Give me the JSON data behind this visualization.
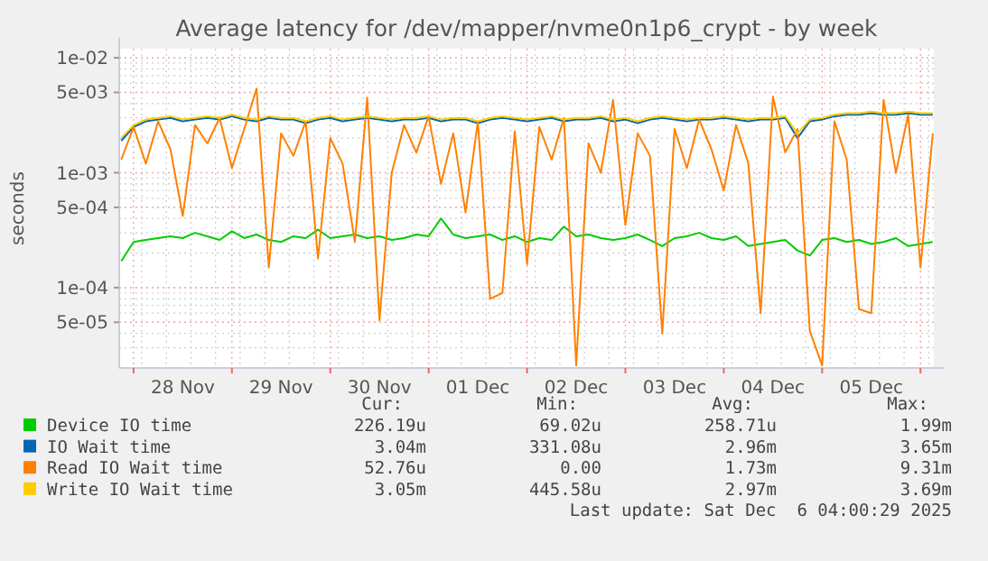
{
  "chart_data": {
    "type": "line",
    "title": "Average latency for /dev/mapper/nvme0n1p6_crypt - by week",
    "ylabel": "seconds",
    "log": "y",
    "grid": true,
    "legend": "bottom",
    "line_style": "solid",
    "ylim": [
      2e-05,
      0.012
    ],
    "yticks": [
      {
        "value": 0.01,
        "label": "1e-02"
      },
      {
        "value": 0.005,
        "label": "5e-03"
      },
      {
        "value": 0.001,
        "label": "1e-03"
      },
      {
        "value": 0.0005,
        "label": "5e-04"
      },
      {
        "value": 0.0001,
        "label": "1e-04"
      },
      {
        "value": 5e-05,
        "label": "5e-05"
      }
    ],
    "xlim": [
      "2025-11-27T20:30",
      "2025-12-06T03:15"
    ],
    "xticks": [
      {
        "value": "2025-11-28T00:00",
        "label": null
      },
      {
        "value": "2025-11-28T12:00",
        "label": "28 Nov"
      },
      {
        "value": "2025-11-29T00:00",
        "label": null
      },
      {
        "value": "2025-11-29T12:00",
        "label": "29 Nov"
      },
      {
        "value": "2025-11-30T00:00",
        "label": null
      },
      {
        "value": "2025-11-30T12:00",
        "label": "30 Nov"
      },
      {
        "value": "2025-12-01T00:00",
        "label": null
      },
      {
        "value": "2025-12-01T12:00",
        "label": "01 Dec"
      },
      {
        "value": "2025-12-02T00:00",
        "label": null
      },
      {
        "value": "2025-12-02T12:00",
        "label": "02 Dec"
      },
      {
        "value": "2025-12-03T00:00",
        "label": null
      },
      {
        "value": "2025-12-03T12:00",
        "label": "03 Dec"
      },
      {
        "value": "2025-12-04T00:00",
        "label": null
      },
      {
        "value": "2025-12-04T12:00",
        "label": "04 Dec"
      },
      {
        "value": "2025-12-05T00:00",
        "label": null
      },
      {
        "value": "2025-12-05T12:00",
        "label": "05 Dec"
      },
      {
        "value": "2025-12-06T00:00",
        "label": null
      }
    ],
    "x": [
      "2025-11-27T21:00",
      "2025-11-28T00:00",
      "2025-11-28T03:00",
      "2025-11-28T06:00",
      "2025-11-28T09:00",
      "2025-11-28T12:00",
      "2025-11-28T15:00",
      "2025-11-28T18:00",
      "2025-11-28T21:00",
      "2025-11-29T00:00",
      "2025-11-29T03:00",
      "2025-11-29T06:00",
      "2025-11-29T09:00",
      "2025-11-29T12:00",
      "2025-11-29T15:00",
      "2025-11-29T18:00",
      "2025-11-29T21:00",
      "2025-11-30T00:00",
      "2025-11-30T03:00",
      "2025-11-30T06:00",
      "2025-11-30T09:00",
      "2025-11-30T12:00",
      "2025-11-30T15:00",
      "2025-11-30T18:00",
      "2025-11-30T21:00",
      "2025-12-01T00:00",
      "2025-12-01T03:00",
      "2025-12-01T06:00",
      "2025-12-01T09:00",
      "2025-12-01T12:00",
      "2025-12-01T15:00",
      "2025-12-01T18:00",
      "2025-12-01T21:00",
      "2025-12-02T00:00",
      "2025-12-02T03:00",
      "2025-12-02T06:00",
      "2025-12-02T09:00",
      "2025-12-02T12:00",
      "2025-12-02T15:00",
      "2025-12-02T18:00",
      "2025-12-02T21:00",
      "2025-12-03T00:00",
      "2025-12-03T03:00",
      "2025-12-03T06:00",
      "2025-12-03T09:00",
      "2025-12-03T12:00",
      "2025-12-03T15:00",
      "2025-12-03T18:00",
      "2025-12-03T21:00",
      "2025-12-04T00:00",
      "2025-12-04T03:00",
      "2025-12-04T06:00",
      "2025-12-04T09:00",
      "2025-12-04T12:00",
      "2025-12-04T15:00",
      "2025-12-04T18:00",
      "2025-12-04T21:00",
      "2025-12-05T00:00",
      "2025-12-05T03:00",
      "2025-12-05T06:00",
      "2025-12-05T09:00",
      "2025-12-05T12:00",
      "2025-12-05T15:00",
      "2025-12-05T18:00",
      "2025-12-05T21:00",
      "2025-12-06T00:00",
      "2025-12-06T03:00"
    ],
    "series": [
      {
        "name": "Device IO time",
        "color": "#00cc00",
        "values": [
          0.00017,
          0.00025,
          0.00026,
          0.00027,
          0.00028,
          0.00027,
          0.0003,
          0.00028,
          0.00026,
          0.00031,
          0.00027,
          0.00029,
          0.00026,
          0.00025,
          0.00028,
          0.00027,
          0.00032,
          0.00027,
          0.00028,
          0.00029,
          0.00027,
          0.00028,
          0.00026,
          0.00027,
          0.00029,
          0.00028,
          0.0004,
          0.00029,
          0.00027,
          0.00028,
          0.00029,
          0.00026,
          0.00028,
          0.00025,
          0.00027,
          0.00026,
          0.00034,
          0.00028,
          0.00029,
          0.00027,
          0.00026,
          0.00027,
          0.00029,
          0.00026,
          0.00023,
          0.00027,
          0.00028,
          0.0003,
          0.00027,
          0.00026,
          0.00028,
          0.00023,
          0.00024,
          0.00025,
          0.00026,
          0.00021,
          0.00019,
          0.00026,
          0.00027,
          0.00025,
          0.00026,
          0.00024,
          0.00025,
          0.00027,
          0.00023,
          0.00024,
          0.00025
        ]
      },
      {
        "name": "IO Wait time",
        "color": "#0066b3",
        "values": [
          0.0019,
          0.0025,
          0.0028,
          0.0029,
          0.003,
          0.0028,
          0.0029,
          0.003,
          0.0029,
          0.0031,
          0.0029,
          0.0028,
          0.003,
          0.0029,
          0.0029,
          0.0027,
          0.0029,
          0.003,
          0.0028,
          0.0029,
          0.003,
          0.0029,
          0.0028,
          0.0029,
          0.0029,
          0.003,
          0.0028,
          0.0029,
          0.0029,
          0.0027,
          0.0029,
          0.003,
          0.0029,
          0.0028,
          0.0029,
          0.003,
          0.0028,
          0.0029,
          0.0029,
          0.003,
          0.0028,
          0.0029,
          0.0027,
          0.0029,
          0.003,
          0.0029,
          0.0028,
          0.0029,
          0.0029,
          0.003,
          0.0029,
          0.0028,
          0.0029,
          0.0029,
          0.003,
          0.002,
          0.0028,
          0.0029,
          0.0031,
          0.0032,
          0.0032,
          0.0033,
          0.0032,
          0.0032,
          0.0033,
          0.0032,
          0.0032
        ]
      },
      {
        "name": "Read IO Wait time",
        "color": "#ff8000",
        "values": [
          0.0013,
          0.0025,
          0.0012,
          0.0028,
          0.0016,
          0.00042,
          0.0026,
          0.0018,
          0.003,
          0.0011,
          0.0024,
          0.0054,
          0.00015,
          0.0022,
          0.0014,
          0.0028,
          0.00018,
          0.002,
          0.0012,
          0.00025,
          0.0045,
          5.2e-05,
          0.001,
          0.0026,
          0.0015,
          0.0031,
          0.0008,
          0.0022,
          0.00045,
          0.0028,
          8e-05,
          9e-05,
          0.0023,
          0.00016,
          0.0025,
          0.0013,
          0.003,
          2.1e-05,
          0.0018,
          0.001,
          0.0043,
          0.00035,
          0.0022,
          0.0014,
          4e-05,
          0.0024,
          0.0011,
          0.0029,
          0.0016,
          0.0007,
          0.0026,
          0.0012,
          6e-05,
          0.0046,
          0.0015,
          0.0024,
          4.2e-05,
          2.1e-05,
          0.0028,
          0.0013,
          6.5e-05,
          6e-05,
          0.0043,
          0.001,
          0.0032,
          0.00015,
          0.0022
        ]
      },
      {
        "name": "Write IO Wait time",
        "color": "#ffcc00",
        "values": [
          0.002,
          0.0026,
          0.0029,
          0.003,
          0.0031,
          0.0029,
          0.003,
          0.0031,
          0.003,
          0.0032,
          0.003,
          0.0029,
          0.0031,
          0.003,
          0.003,
          0.0028,
          0.003,
          0.0031,
          0.0029,
          0.003,
          0.0031,
          0.003,
          0.0029,
          0.003,
          0.003,
          0.0031,
          0.0029,
          0.003,
          0.003,
          0.0028,
          0.003,
          0.0031,
          0.003,
          0.0029,
          0.003,
          0.0031,
          0.0029,
          0.003,
          0.003,
          0.0031,
          0.0029,
          0.003,
          0.0028,
          0.003,
          0.0031,
          0.003,
          0.0029,
          0.003,
          0.003,
          0.0031,
          0.003,
          0.0029,
          0.003,
          0.003,
          0.0031,
          0.0022,
          0.0029,
          0.003,
          0.0032,
          0.0033,
          0.0033,
          0.0034,
          0.0033,
          0.0033,
          0.0034,
          0.0033,
          0.0033
        ]
      }
    ],
    "annotations": [
      "Cur:",
      "Min:",
      "Avg:",
      "Max:",
      "226.19u",
      "69.02u",
      "258.71u",
      "1.99m",
      "3.04m",
      "331.08u",
      "2.96m",
      "3.65m",
      "52.76u",
      "0.00",
      "1.73m",
      "9.31m",
      "3.05m",
      "445.58u",
      "2.97m",
      "3.69m",
      "Last update: Sat Dec  6 04:00:29 2025"
    ]
  }
}
